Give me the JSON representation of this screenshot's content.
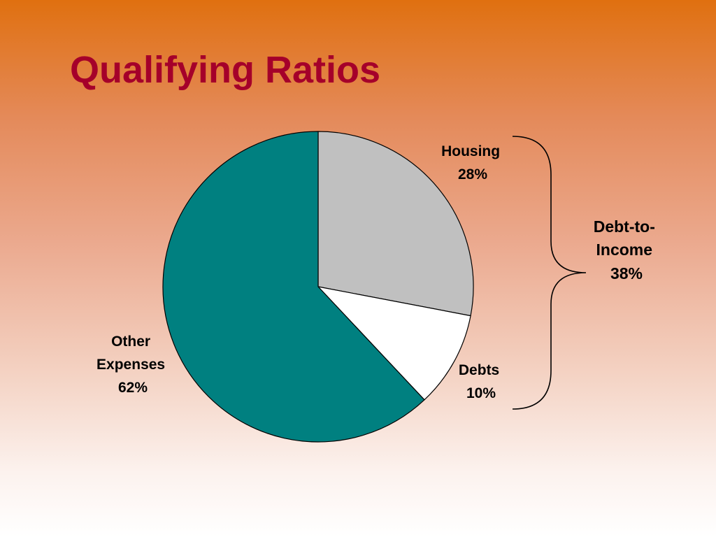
{
  "title": "Qualifying Ratios",
  "colors": {
    "title": "#a5002a",
    "slice_outline": "#000000",
    "bracket": "#000000"
  },
  "chart_data": {
    "type": "pie",
    "start_angle_deg": 0,
    "direction": "clockwise",
    "slices": [
      {
        "label_lines": [
          "Housing",
          "28%"
        ],
        "value": 28,
        "color": "#c0c0c0"
      },
      {
        "label_lines": [
          "Debts",
          "10%"
        ],
        "value": 10,
        "color": "#ffffff"
      },
      {
        "label_lines": [
          "Other",
          "Expenses",
          "62%"
        ],
        "value": 62,
        "color": "#008080"
      }
    ],
    "annotation": {
      "type": "brace",
      "spans": [
        "Housing",
        "Debts"
      ],
      "label_lines": [
        "Debt-to-",
        "Income",
        "38%"
      ]
    }
  }
}
